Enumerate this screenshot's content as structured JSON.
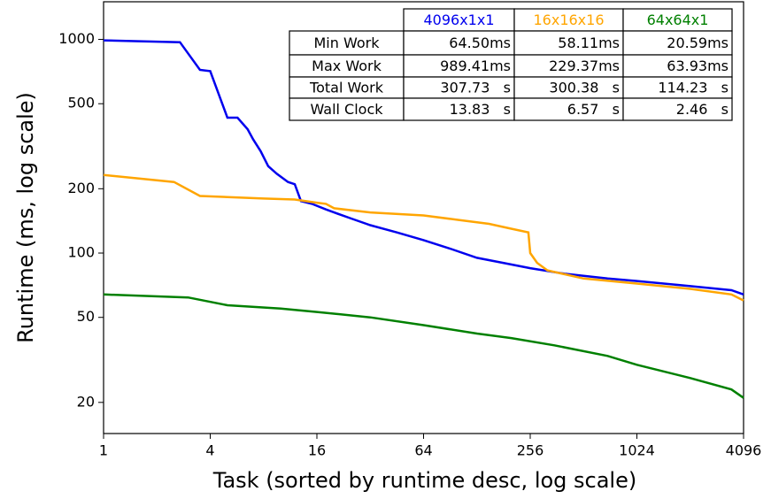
{
  "chart_data": {
    "type": "line",
    "xlabel": "Task (sorted by runtime desc, log scale)",
    "ylabel": "Runtime (ms, log scale)",
    "xscale": "log",
    "yscale": "log",
    "xlim": [
      1,
      4096
    ],
    "ylim": [
      14.3,
      1500
    ],
    "xticks": [
      1,
      4,
      16,
      64,
      256,
      1024,
      4096
    ],
    "yticks": [
      20,
      50,
      100,
      200,
      500,
      1000
    ],
    "series": [
      {
        "name": "4096x1x1",
        "color": "#0000ee",
        "x": [
          1,
          2.7,
          3.5,
          4,
          5,
          5.7,
          6.5,
          7,
          7.7,
          8.5,
          9.5,
          11,
          12,
          13,
          15,
          18,
          20,
          25,
          32,
          45,
          64,
          90,
          128,
          180,
          256,
          400,
          700,
          1024,
          2048,
          3500,
          4096
        ],
        "values": [
          990,
          970,
          720,
          710,
          430,
          430,
          380,
          340,
          300,
          255,
          235,
          215,
          210,
          175,
          170,
          160,
          155,
          145,
          135,
          125,
          115,
          105,
          95,
          90,
          85,
          80,
          76,
          74,
          70,
          67,
          64
        ]
      },
      {
        "name": "16x16x16",
        "color": "#ffa500",
        "x": [
          1,
          2.5,
          3.5,
          8,
          12,
          16,
          18,
          20,
          32,
          64,
          100,
          150,
          200,
          250,
          256,
          280,
          320,
          512,
          1024,
          2048,
          3500,
          4096
        ],
        "values": [
          232,
          215,
          185,
          180,
          178,
          172,
          170,
          162,
          155,
          150,
          143,
          137,
          130,
          125,
          100,
          90,
          83,
          76,
          72,
          68,
          64,
          60
        ]
      },
      {
        "name": "64x64x1",
        "color": "#008000",
        "x": [
          1,
          3,
          5,
          10,
          16,
          32,
          64,
          128,
          200,
          350,
          700,
          1024,
          2048,
          3500,
          4096
        ],
        "values": [
          64,
          62,
          57,
          55,
          53,
          50,
          46,
          42,
          40,
          37,
          33,
          30,
          26,
          23,
          21
        ]
      }
    ],
    "table": {
      "rows": [
        {
          "label": "Min Work",
          "cells": [
            "64.50ms",
            "58.11ms",
            "20.59ms"
          ]
        },
        {
          "label": "Max Work",
          "cells": [
            "989.41ms",
            "229.37ms",
            "63.93ms"
          ]
        },
        {
          "label": "Total Work",
          "cells": [
            "307.73   s",
            "300.38   s",
            "114.23   s"
          ]
        },
        {
          "label": "Wall Clock",
          "cells": [
            "13.83   s",
            "6.57   s",
            "2.46   s"
          ]
        }
      ]
    }
  }
}
